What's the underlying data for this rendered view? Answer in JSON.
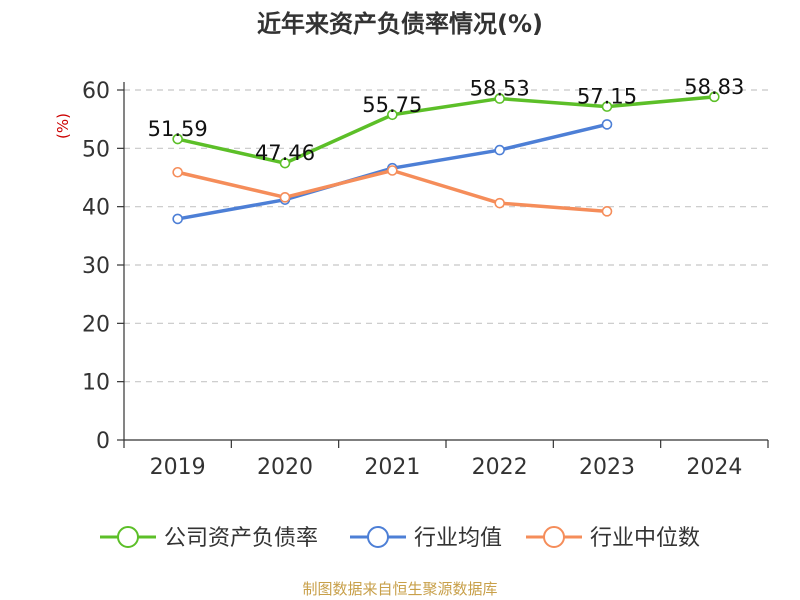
{
  "title": "近年来资产负债率情况(%)",
  "source": "制图数据来自恒生聚源数据库",
  "chart_data": {
    "type": "line",
    "title": "近年来资产负债率情况(%)",
    "xlabel": "",
    "ylabel": "(%)",
    "categories": [
      "2019",
      "2020",
      "2021",
      "2022",
      "2023",
      "2024"
    ],
    "yticks": [
      "0",
      "10",
      "20",
      "30",
      "40",
      "50",
      "60"
    ],
    "ylim": [
      0,
      60
    ],
    "grid": true,
    "legend_position": "bottom",
    "series": [
      {
        "name": "公司资产负债率",
        "color": "#5cbf28",
        "values": [
          51.59,
          47.46,
          55.75,
          58.53,
          57.15,
          58.83
        ],
        "labels": [
          "51.59",
          "47.46",
          "55.75",
          "58.53",
          "57.15",
          "58.83"
        ]
      },
      {
        "name": "行业均值",
        "color": "#4d7fd6",
        "values": [
          37.9,
          41.2,
          46.6,
          49.7,
          54.1,
          null
        ]
      },
      {
        "name": "行业中位数",
        "color": "#f58d5a",
        "values": [
          45.9,
          41.6,
          46.2,
          40.6,
          39.2,
          null
        ]
      }
    ]
  }
}
